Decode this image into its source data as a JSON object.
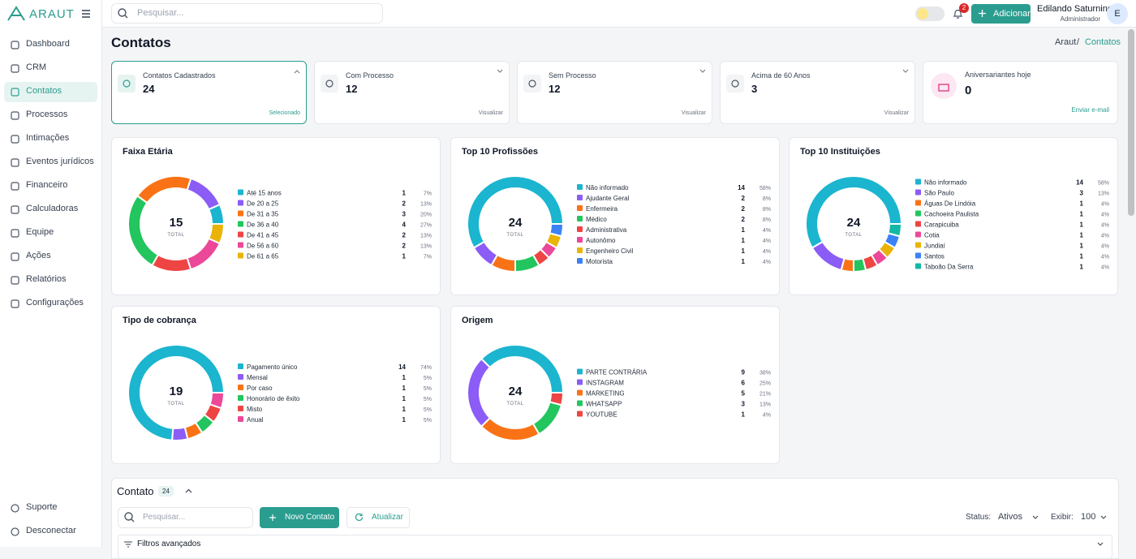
{
  "sidebar": {
    "brand": "ARAUT",
    "nav": [
      "Dashboard",
      "CRM",
      "Contatos",
      "Processos",
      "Intimações",
      "Eventos jurídicos",
      "Financeiro",
      "Calculadoras",
      "Equipe",
      "Ações",
      "Relatórios",
      "Configurações"
    ],
    "bottom": [
      "Suporte",
      "Desconectar"
    ]
  },
  "header": {
    "search_placeholder": "Pesquisar...",
    "notifications": 2,
    "add_button": "Adicionar",
    "user_name": "Edilando Saturnino",
    "user_role": "Administrador",
    "avatar": "E"
  },
  "page": {
    "title": "Contatos",
    "breadcrumb": {
      "root": "Araut",
      "separator": "/",
      "current": "Contatos"
    }
  },
  "stat_cards": [
    {
      "label": "Contatos Cadastrados",
      "value": 24,
      "footer": "Selecionado"
    },
    {
      "label": "Com Processo",
      "value": 12,
      "footer": "Visualizar"
    },
    {
      "label": "Sem Processo",
      "value": 12,
      "footer": "Visualizar"
    },
    {
      "label": "Acima de 60 Anos",
      "value": 3,
      "footer": "Visualizar"
    },
    {
      "label": "Aniversariantes hoje",
      "value": 0,
      "footer": "Enviar e-mail"
    }
  ],
  "chart_data": [
    {
      "type": "donut",
      "title": "Faixa Etária",
      "total": 15,
      "total_label": "TOTAL",
      "categories": [
        "Até 15 anos",
        "De 20 a 25",
        "De 31 a 35",
        "De 36 a 40",
        "De 41 a 45",
        "De 56 a 60",
        "De 61 a 65"
      ],
      "values": [
        1,
        2,
        3,
        4,
        2,
        2,
        1
      ],
      "percent_labels": [
        "7%",
        "13%",
        "20%",
        "27%",
        "13%",
        "13%",
        "7%"
      ],
      "colors": [
        "#1bb5cf",
        "#8b5cf6",
        "#f97316",
        "#22c55e",
        "#ef4444",
        "#ec4899",
        "#eab308"
      ]
    },
    {
      "type": "donut",
      "title": "Top 10 Profissões",
      "total": 24,
      "total_label": "TOTAL",
      "categories": [
        "Não informado",
        "Ajudante Geral",
        "Enfermeira",
        "Médico",
        "Administrativa",
        "Autonômo",
        "Engenheiro Civil",
        "Motorista"
      ],
      "values": [
        14,
        2,
        2,
        2,
        1,
        1,
        1,
        1
      ],
      "percent_labels": [
        "58%",
        "8%",
        "8%",
        "8%",
        "4%",
        "4%",
        "4%",
        "4%"
      ],
      "colors": [
        "#1bb5cf",
        "#8b5cf6",
        "#f97316",
        "#22c55e",
        "#ef4444",
        "#ec4899",
        "#eab308",
        "#3b82f6"
      ]
    },
    {
      "type": "donut",
      "title": "Top 10 Instituições",
      "total": 24,
      "total_label": "TOTAL",
      "categories": [
        "Não informado",
        "São Paulo",
        "Águas De Lindóia",
        "Cachoeira Paulista",
        "Carapicuiba",
        "Cotia",
        "Jundiaí",
        "Santos",
        "Taboão Da Serra"
      ],
      "values": [
        14,
        3,
        1,
        1,
        1,
        1,
        1,
        1,
        1
      ],
      "percent_labels": [
        "58%",
        "13%",
        "4%",
        "4%",
        "4%",
        "4%",
        "4%",
        "4%",
        "4%"
      ],
      "colors": [
        "#1bb5cf",
        "#8b5cf6",
        "#f97316",
        "#22c55e",
        "#ef4444",
        "#ec4899",
        "#eab308",
        "#3b82f6",
        "#14b8a6"
      ]
    },
    {
      "type": "donut",
      "title": "Tipo de cobrança",
      "total": 19,
      "total_label": "TOTAL",
      "categories": [
        "Pagamento único",
        "Mensal",
        "Por caso",
        "Honorário de êxito",
        "Misto",
        "Anual"
      ],
      "values": [
        14,
        1,
        1,
        1,
        1,
        1
      ],
      "percent_labels": [
        "74%",
        "5%",
        "5%",
        "5%",
        "5%",
        "5%"
      ],
      "colors": [
        "#1bb5cf",
        "#8b5cf6",
        "#f97316",
        "#22c55e",
        "#ef4444",
        "#ec4899"
      ]
    },
    {
      "type": "donut",
      "title": "Origem",
      "total": 24,
      "total_label": "TOTAL",
      "categories": [
        "PARTE CONTRÁRIA",
        "INSTAGRAM",
        "MARKETING",
        "WHATSAPP",
        "YOUTUBE"
      ],
      "values": [
        9,
        6,
        5,
        3,
        1
      ],
      "percent_labels": [
        "38%",
        "25%",
        "21%",
        "13%",
        "4%"
      ],
      "colors": [
        "#1bb5cf",
        "#8b5cf6",
        "#f97316",
        "#22c55e",
        "#ef4444"
      ]
    }
  ],
  "contacts": {
    "title": "Contato",
    "count": 24,
    "search_placeholder": "Pesquisar...",
    "new_button": "Novo Contato",
    "refresh_button": "Atualizar",
    "status_label": "Status:",
    "status_value": "Ativos",
    "show_label": "Exibir:",
    "show_value": 100,
    "filters": "Filtros avançados"
  }
}
